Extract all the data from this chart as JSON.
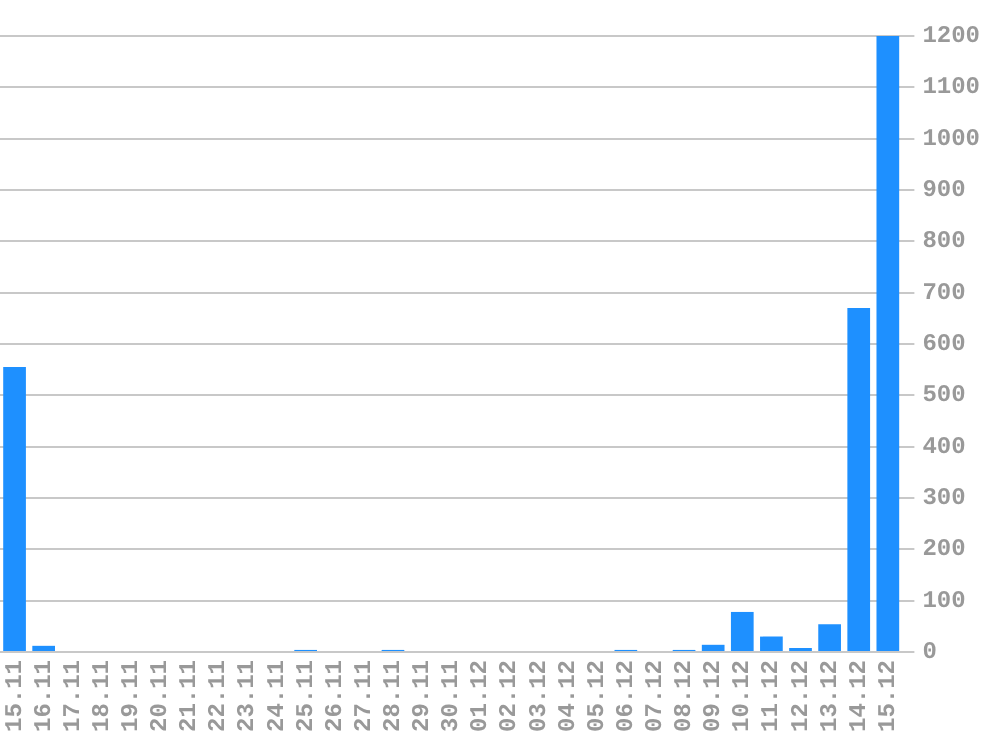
{
  "chart_data": {
    "type": "bar",
    "categories": [
      "15.11",
      "16.11",
      "17.11",
      "18.11",
      "19.11",
      "20.11",
      "21.11",
      "22.11",
      "23.11",
      "24.11",
      "25.11",
      "26.11",
      "27.11",
      "28.11",
      "29.11",
      "30.11",
      "01.12",
      "02.12",
      "03.12",
      "04.12",
      "05.12",
      "06.12",
      "07.12",
      "08.12",
      "09.12",
      "10.12",
      "11.12",
      "12.12",
      "13.12",
      "14.12",
      "15.12"
    ],
    "values": [
      555,
      12,
      0,
      0,
      0,
      0,
      0,
      0,
      0,
      0,
      4,
      0,
      0,
      4,
      0,
      0,
      0,
      0,
      0,
      0,
      0,
      4,
      0,
      4,
      14,
      78,
      30,
      8,
      54,
      670,
      1200
    ],
    "color": "#1e90ff",
    "ylim": [
      0,
      1200
    ],
    "yticks": [
      0,
      100,
      200,
      300,
      400,
      500,
      600,
      700,
      800,
      900,
      1000,
      1100,
      1200
    ],
    "grid": "y"
  }
}
